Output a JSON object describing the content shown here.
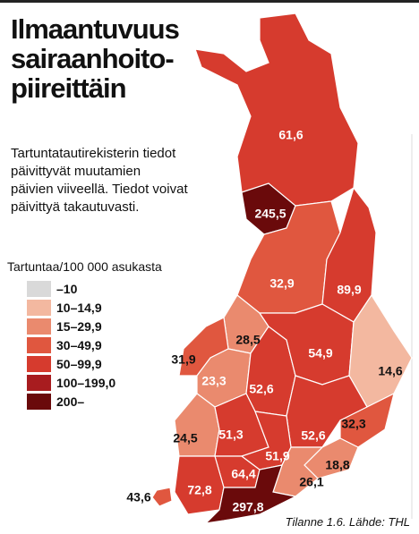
{
  "title": [
    "Ilmaantuvuus",
    "sairaanhoito-",
    "piireittäin"
  ],
  "subtitle": [
    "Tartuntatautirekisterin tiedot",
    "päivittyvät muutamien",
    "päivien viiveellä. Tiedot voivat",
    "päivittyä takautuvasti."
  ],
  "legend": {
    "title": "Tartuntaa/100 000 asukasta",
    "items": [
      {
        "label": "–10",
        "color": "#d9d9d9"
      },
      {
        "label": "10–14,9",
        "color": "#f3b8a0"
      },
      {
        "label": "15–29,9",
        "color": "#ea8a6e"
      },
      {
        "label": "30–49,9",
        "color": "#e0573f"
      },
      {
        "label": "50–99,9",
        "color": "#d63b2e"
      },
      {
        "label": "100–199,0",
        "color": "#a81c1f"
      },
      {
        "label": "200–",
        "color": "#6a0a0b"
      }
    ]
  },
  "regions": [
    {
      "value": 61.6,
      "label": "61,6",
      "color": "#d63b2e"
    },
    {
      "value": 245.5,
      "label": "245,5",
      "color": "#6a0a0b"
    },
    {
      "value": 32.9,
      "label": "32,9",
      "color": "#e0573f"
    },
    {
      "value": 89.9,
      "label": "89,9",
      "color": "#d63b2e"
    },
    {
      "value": 28.5,
      "label": "28,5",
      "color": "#ea8a6e"
    },
    {
      "value": 31.9,
      "label": "31,9",
      "color": "#e0573f"
    },
    {
      "value": 23.3,
      "label": "23,3",
      "color": "#ea8a6e"
    },
    {
      "value": 52.6,
      "label": "52,6",
      "color": "#d63b2e"
    },
    {
      "value": 54.9,
      "label": "54,9",
      "color": "#d63b2e"
    },
    {
      "value": 14.6,
      "label": "14,6",
      "color": "#f3b8a0"
    },
    {
      "value": 52.6,
      "label": "52,6",
      "color": "#d63b2e"
    },
    {
      "value": 32.3,
      "label": "32,3",
      "color": "#e0573f"
    },
    {
      "value": 24.5,
      "label": "24,5",
      "color": "#ea8a6e"
    },
    {
      "value": 51.3,
      "label": "51,3",
      "color": "#d63b2e"
    },
    {
      "value": 64.4,
      "label": "64,4",
      "color": "#d63b2e"
    },
    {
      "value": 51.9,
      "label": "51,9",
      "color": "#d63b2e"
    },
    {
      "value": 18.8,
      "label": "18,8",
      "color": "#ea8a6e"
    },
    {
      "value": 26.1,
      "label": "26,1",
      "color": "#ea8a6e"
    },
    {
      "value": 72.8,
      "label": "72,8",
      "color": "#d63b2e"
    },
    {
      "value": 297.8,
      "label": "297,8",
      "color": "#6a0a0b"
    },
    {
      "value": 43.6,
      "label": "43,6",
      "color": "#e0573f"
    }
  ],
  "source": "Tilanne 1.6. Lähde: THL"
}
